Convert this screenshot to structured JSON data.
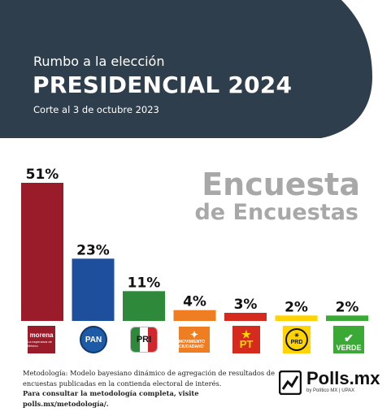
{
  "header": {
    "subtitle": "Rumbo a la elección",
    "title": "PRESIDENCIAL 2024",
    "date": "Corte al 3 de octubre 2023",
    "bg_color": "#2e3e4c"
  },
  "headline": {
    "line1": "Encuesta",
    "line2": "de Encuestas"
  },
  "chart_data": {
    "type": "bar",
    "categories": [
      "morena",
      "PAN",
      "PRI",
      "MOVIMIENTO CIUDADANO",
      "PT",
      "PRD",
      "VERDE"
    ],
    "values": [
      51,
      23,
      11,
      4,
      3,
      2,
      2
    ],
    "value_labels": [
      "51%",
      "23%",
      "11%",
      "4%",
      "3%",
      "2%",
      "2%"
    ],
    "colors": [
      "#9a1c2b",
      "#1d4f9c",
      "#2e8a3a",
      "#ef7d22",
      "#d52b1e",
      "#ffd400",
      "#3aa935"
    ],
    "ylim": [
      0,
      51
    ],
    "grid": false,
    "legend": "none"
  },
  "logos": {
    "morena": {
      "name": "morena",
      "tagline": "La esperanza de México"
    },
    "pan": {
      "name": "PAN"
    },
    "pri": {
      "name": "PRI"
    },
    "mc": {
      "name": "MOVIMIENTO CIUDADANO"
    },
    "pt": {
      "name": "PT"
    },
    "prd": {
      "name": "PRD"
    },
    "verde": {
      "name": "VERDE"
    }
  },
  "footer": {
    "methodology": "Metodología: Modelo bayesiano dinámico de agregación de resultados de encuestas publicadas en la contienda electoral de interés.",
    "cta": "Para consultar la metodología completa, visite polls.mx/metodología/.",
    "brand": "Polls.mx",
    "brand_by": "by Político MX | UPAX"
  }
}
